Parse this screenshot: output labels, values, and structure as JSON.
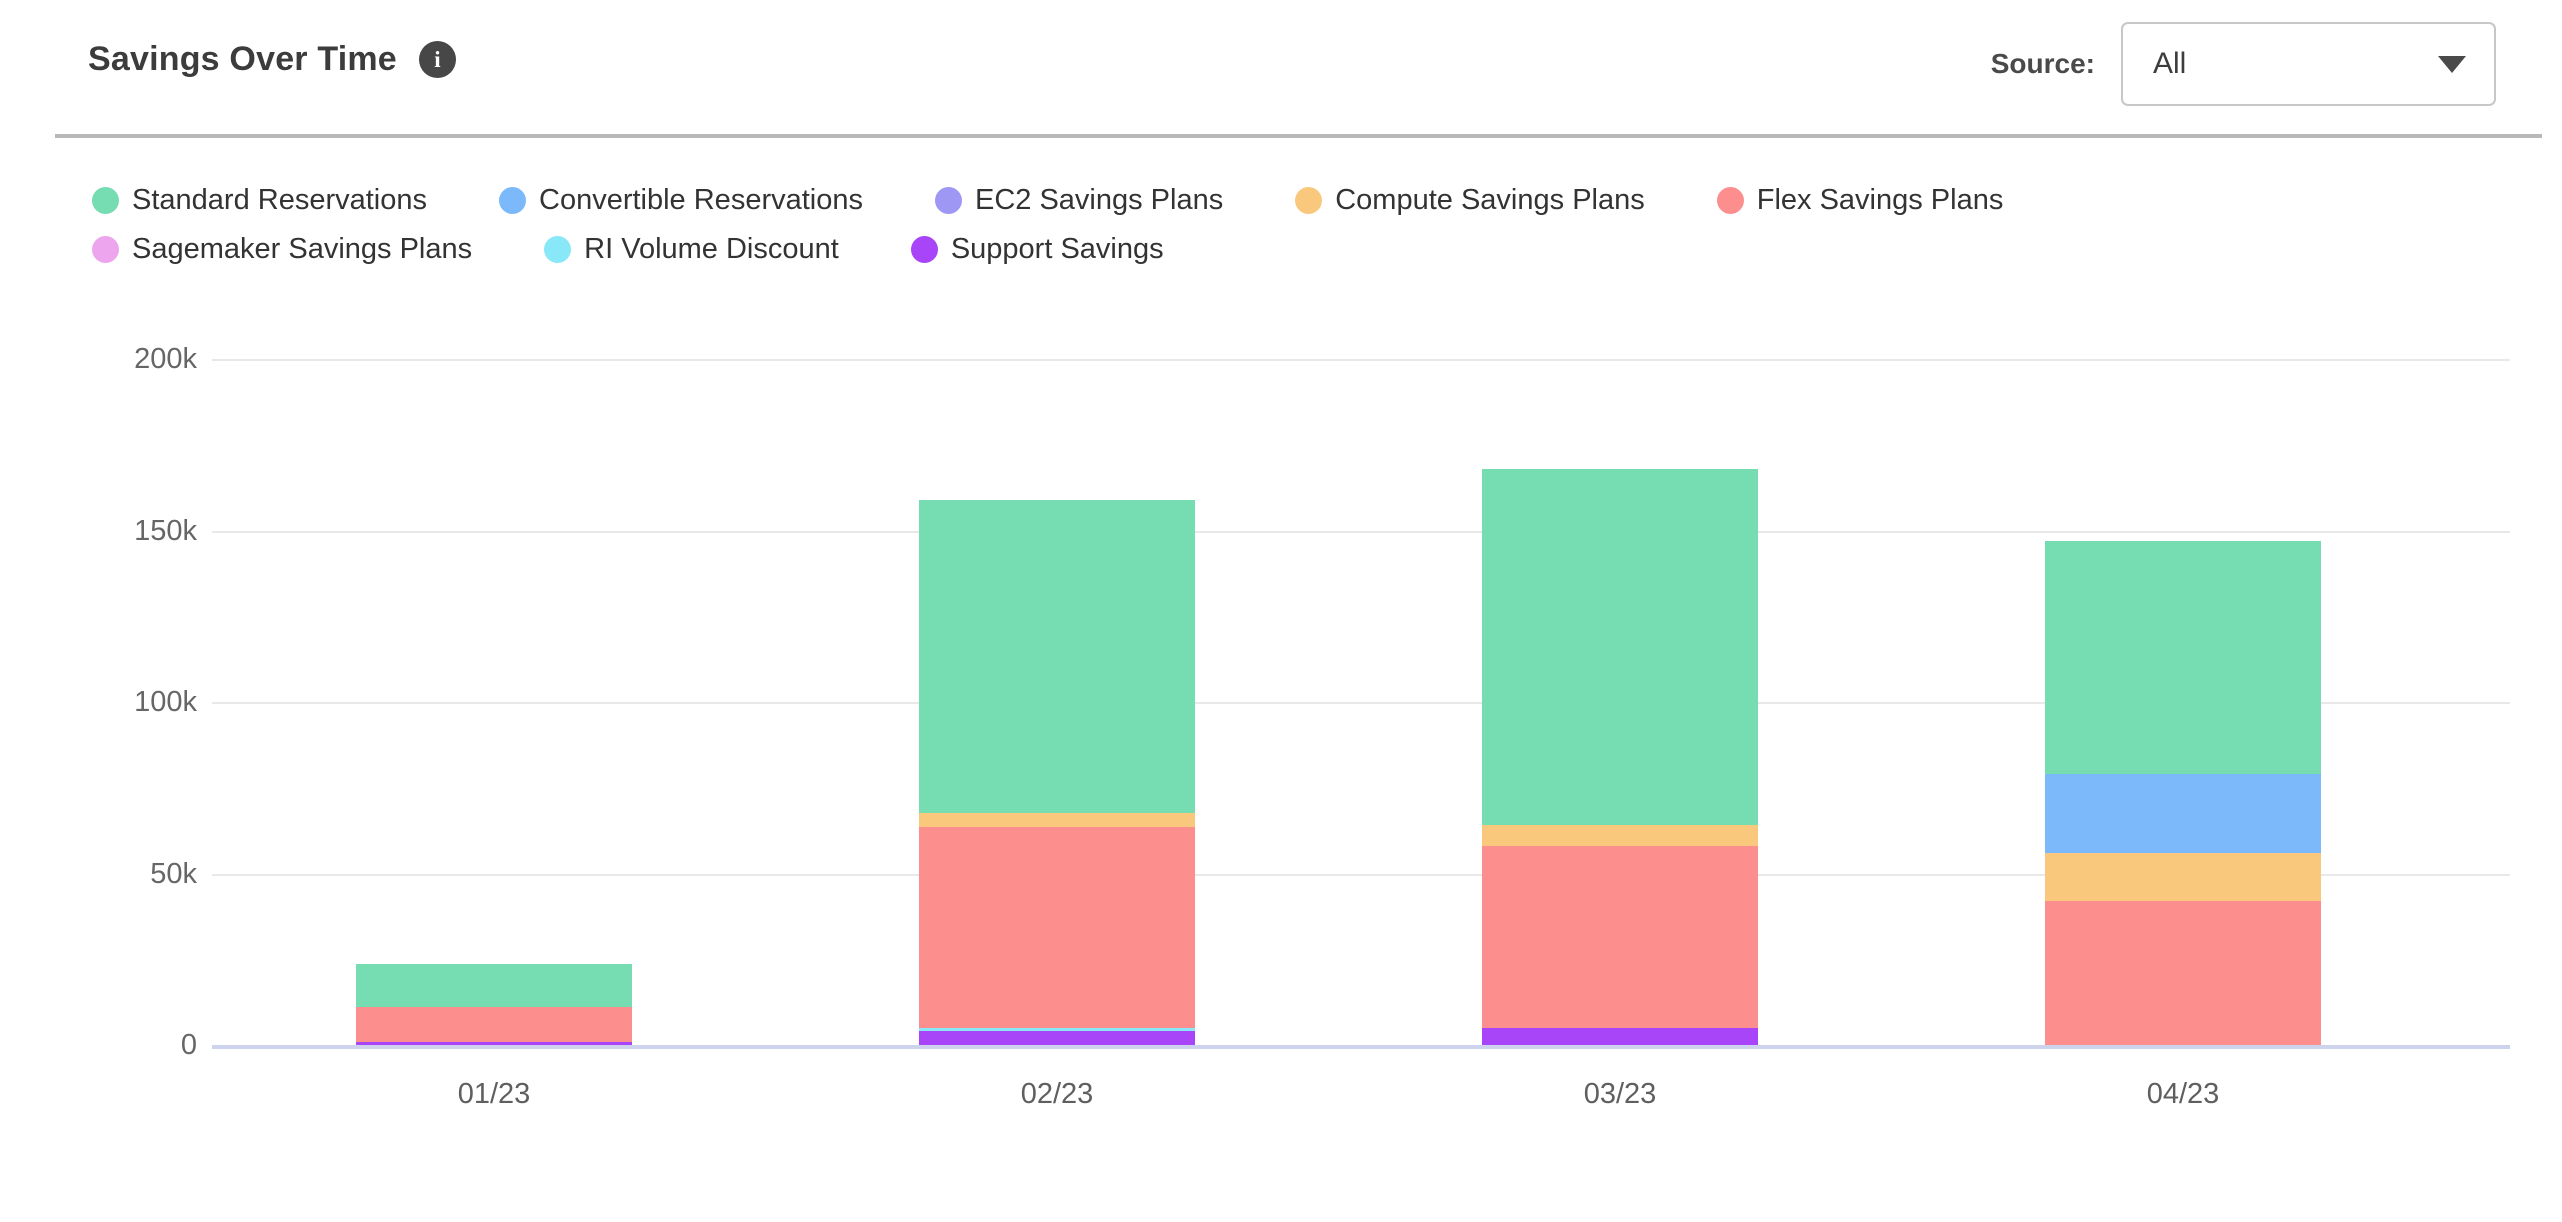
{
  "header": {
    "title": "Savings Over Time",
    "info_glyph": "i",
    "source_label": "Source:",
    "source_value": "All"
  },
  "chart_data": {
    "type": "bar",
    "subtype": "stacked-vertical",
    "title": "Savings Over Time",
    "categories": [
      "01/23",
      "02/23",
      "03/23",
      "04/23"
    ],
    "values_unit": "thousands (k)",
    "series": [
      {
        "name": "Standard Reservations",
        "color": "#76DCB2",
        "values": [
          12.5,
          91.5,
          104,
          68
        ]
      },
      {
        "name": "Convertible Reservations",
        "color": "#7CB9FA",
        "values": [
          0,
          0,
          0,
          23
        ]
      },
      {
        "name": "EC2 Savings Plans",
        "color": "#9E97F3",
        "values": [
          0,
          0,
          0,
          0
        ]
      },
      {
        "name": "Compute Savings Plans",
        "color": "#F9C87D",
        "values": [
          0,
          4,
          6,
          14
        ]
      },
      {
        "name": "Flex Savings Plans",
        "color": "#FC8E8E",
        "values": [
          10,
          58.5,
          53,
          42
        ]
      },
      {
        "name": "Sagemaker Savings Plans",
        "color": "#EDA6EE",
        "values": [
          0,
          0,
          0,
          0
        ]
      },
      {
        "name": "RI Volume Discount",
        "color": "#88E8F7",
        "values": [
          0,
          1,
          0,
          0
        ]
      },
      {
        "name": "Support Savings",
        "color": "#A845F8",
        "values": [
          1,
          4,
          5,
          0
        ]
      }
    ],
    "stack_order": "reverse-of-legend (Support Savings at bottom, Standard Reservations on top)",
    "y_ticks": [
      {
        "label": "0",
        "value_k": 0
      },
      {
        "label": "50k",
        "value_k": 50
      },
      {
        "label": "100k",
        "value_k": 100
      },
      {
        "label": "150k",
        "value_k": 150
      },
      {
        "label": "200k",
        "value_k": 200
      }
    ],
    "ylim_k": [
      0,
      200
    ],
    "grid": "horizontal",
    "legend_position": "top-left"
  }
}
